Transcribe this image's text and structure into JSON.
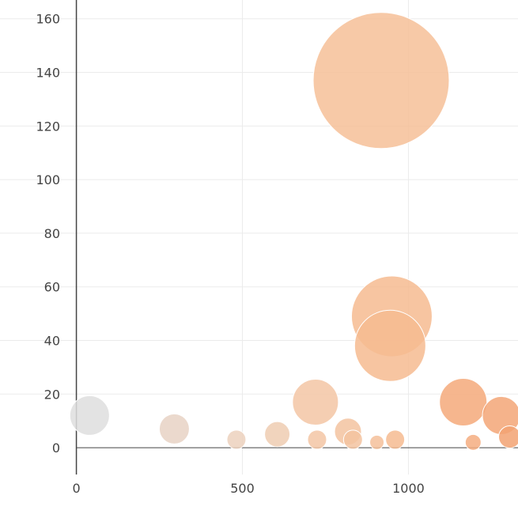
{
  "chart_data": {
    "type": "scatter",
    "title": "",
    "xlabel": "",
    "ylabel": "",
    "xlim": [
      -230,
      1330
    ],
    "ylim": [
      -10,
      167
    ],
    "grid": true,
    "x_ticks": [
      0,
      500,
      1000
    ],
    "y_ticks": [
      0,
      20,
      40,
      60,
      80,
      100,
      120,
      140,
      160
    ],
    "points": [
      {
        "x": 40,
        "y": 12,
        "r": 25,
        "color": "#dedede"
      },
      {
        "x": 295,
        "y": 7,
        "r": 19,
        "color": "#e7d2c4"
      },
      {
        "x": 482,
        "y": 3,
        "r": 12,
        "color": "#ecd1bd"
      },
      {
        "x": 605,
        "y": 5,
        "r": 16,
        "color": "#efccb2"
      },
      {
        "x": 720,
        "y": 17,
        "r": 29,
        "color": "#f3c6a5"
      },
      {
        "x": 725,
        "y": 3,
        "r": 12,
        "color": "#f3c6a5"
      },
      {
        "x": 818,
        "y": 6,
        "r": 17,
        "color": "#f3c3a0"
      },
      {
        "x": 833,
        "y": 3,
        "r": 12,
        "color": "#f3c3a0"
      },
      {
        "x": 905,
        "y": 2,
        "r": 9,
        "color": "#f5c09a"
      },
      {
        "x": 918,
        "y": 137,
        "r": 86,
        "color": "#f6bf98"
      },
      {
        "x": 950,
        "y": 49,
        "r": 51,
        "color": "#f6bb91"
      },
      {
        "x": 945,
        "y": 38,
        "r": 45,
        "color": "#f6bb91"
      },
      {
        "x": 960,
        "y": 3,
        "r": 12,
        "color": "#f6bb91"
      },
      {
        "x": 1165,
        "y": 17,
        "r": 30,
        "color": "#f4a97a"
      },
      {
        "x": 1195,
        "y": 2,
        "r": 10,
        "color": "#f4ad80"
      },
      {
        "x": 1280,
        "y": 12,
        "r": 24,
        "color": "#f3a677"
      },
      {
        "x": 1305,
        "y": 4,
        "r": 14,
        "color": "#f2a272"
      }
    ]
  }
}
